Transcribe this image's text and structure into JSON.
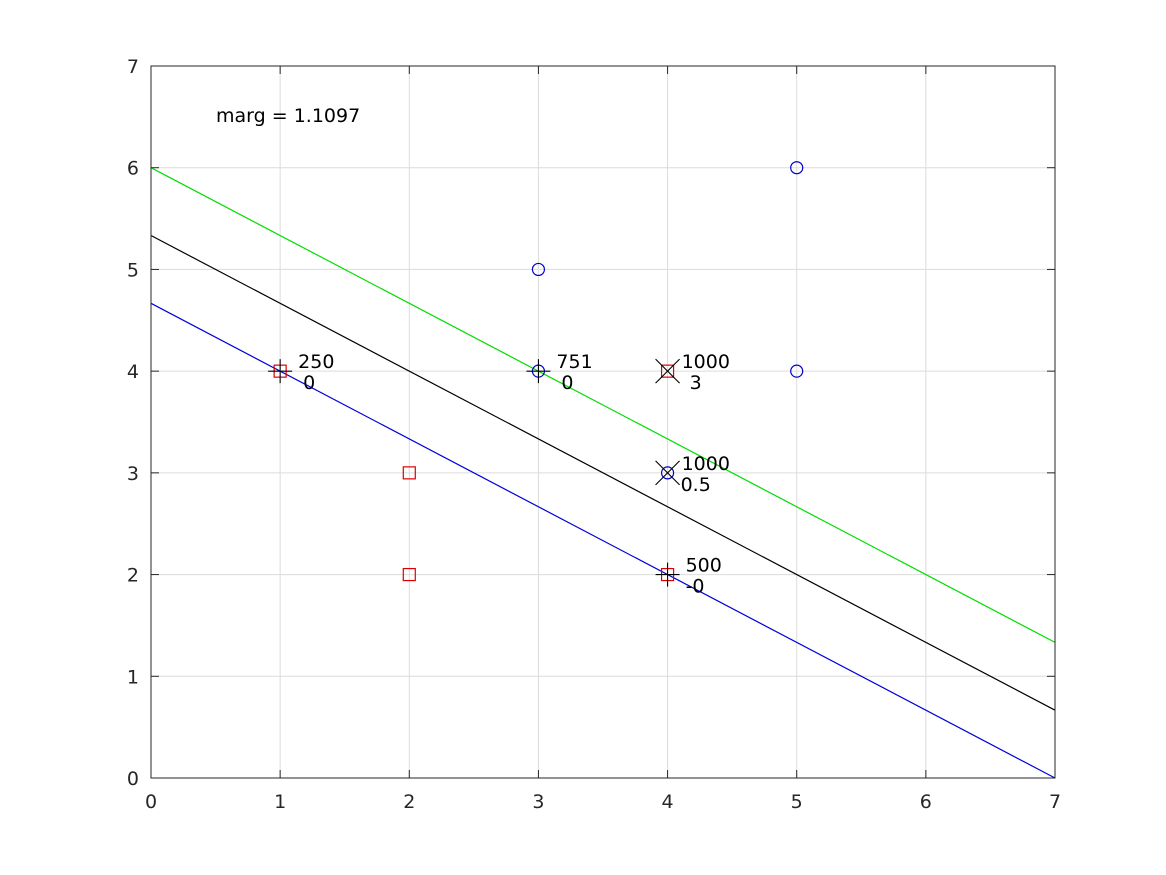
{
  "chart_data": {
    "type": "scatter",
    "title": "",
    "xlabel": "",
    "ylabel": "",
    "xlim": [
      0,
      7
    ],
    "ylim": [
      0,
      7
    ],
    "xticks": [
      0,
      1,
      2,
      3,
      4,
      5,
      6,
      7
    ],
    "yticks": [
      0,
      1,
      2,
      3,
      4,
      5,
      6,
      7
    ],
    "grid": true,
    "annotation": "marg = 1.1097",
    "series": [
      {
        "marker": "circle",
        "color": "#0000cc",
        "points": [
          [
            3,
            5
          ],
          [
            3,
            4
          ],
          [
            4,
            3
          ],
          [
            5,
            6
          ],
          [
            5,
            4
          ]
        ]
      },
      {
        "marker": "square",
        "color": "#dd0000",
        "points": [
          [
            1,
            4
          ],
          [
            2,
            3
          ],
          [
            2,
            2
          ],
          [
            4,
            2
          ],
          [
            4,
            4
          ]
        ]
      }
    ],
    "lines": [
      {
        "color": "#00dd00",
        "x": [
          0,
          7
        ],
        "y": [
          6,
          1.3333
        ]
      },
      {
        "color": "#000000",
        "x": [
          0,
          7
        ],
        "y": [
          5.3333,
          0.6667
        ]
      },
      {
        "color": "#0000dd",
        "x": [
          0,
          7
        ],
        "y": [
          4.6667,
          0
        ]
      }
    ],
    "support_vectors": [
      {
        "x": 1,
        "y": 4,
        "marker": "plus",
        "top": "250",
        "bottom": "0"
      },
      {
        "x": 3,
        "y": 4,
        "marker": "plus",
        "top": "751",
        "bottom": "0"
      },
      {
        "x": 4,
        "y": 4,
        "marker": "cross",
        "top": "1000",
        "bottom": "3"
      },
      {
        "x": 4,
        "y": 3,
        "marker": "cross",
        "top": "1000",
        "bottom": "0.5"
      },
      {
        "x": 4,
        "y": 2,
        "marker": "plus",
        "top": "500",
        "bottom": "-0"
      }
    ]
  }
}
